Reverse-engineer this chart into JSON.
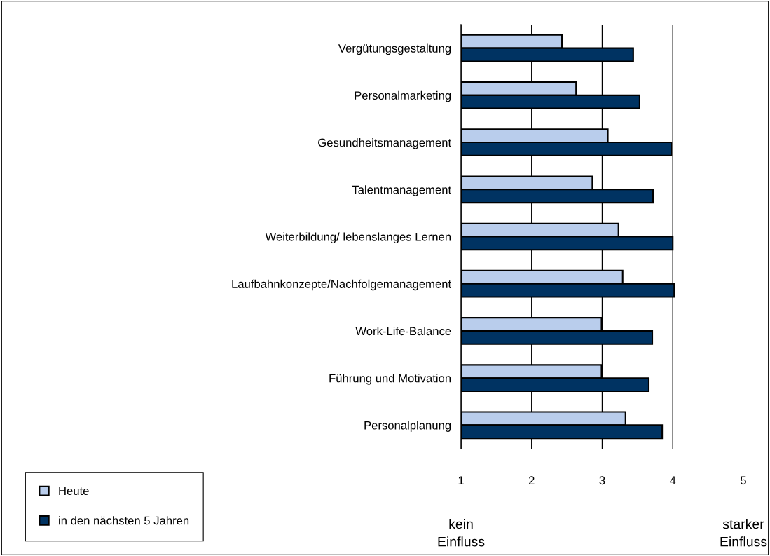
{
  "chart_data": {
    "type": "bar",
    "orientation": "horizontal",
    "categories": [
      "Vergütungsgestaltung",
      "Personalmarketing",
      "Gesundheitsmanagement",
      "Talentmanagement",
      "Weiterbildung/ lebenslanges Lernen",
      "Laufbahnkonzepte/Nachfolgemanagement",
      "Work-Life-Balance",
      "Führung und Motivation",
      "Personalplanung"
    ],
    "series": [
      {
        "name": "Heute",
        "color": "#b9cdec",
        "values": [
          2.43,
          2.63,
          3.08,
          2.86,
          3.23,
          3.29,
          2.99,
          2.99,
          3.33
        ]
      },
      {
        "name": "in den nächsten 5 Jahren",
        "color": "#003362",
        "values": [
          3.44,
          3.53,
          3.98,
          3.72,
          4.0,
          4.02,
          3.71,
          3.66,
          3.85
        ]
      }
    ],
    "xlim": [
      1,
      5
    ],
    "xticks": [
      1,
      2,
      3,
      4,
      5
    ],
    "grid": "x",
    "legend": "bottom left",
    "annotations": [
      "kein\nEinfluss",
      "starker\nEinfluss"
    ]
  }
}
